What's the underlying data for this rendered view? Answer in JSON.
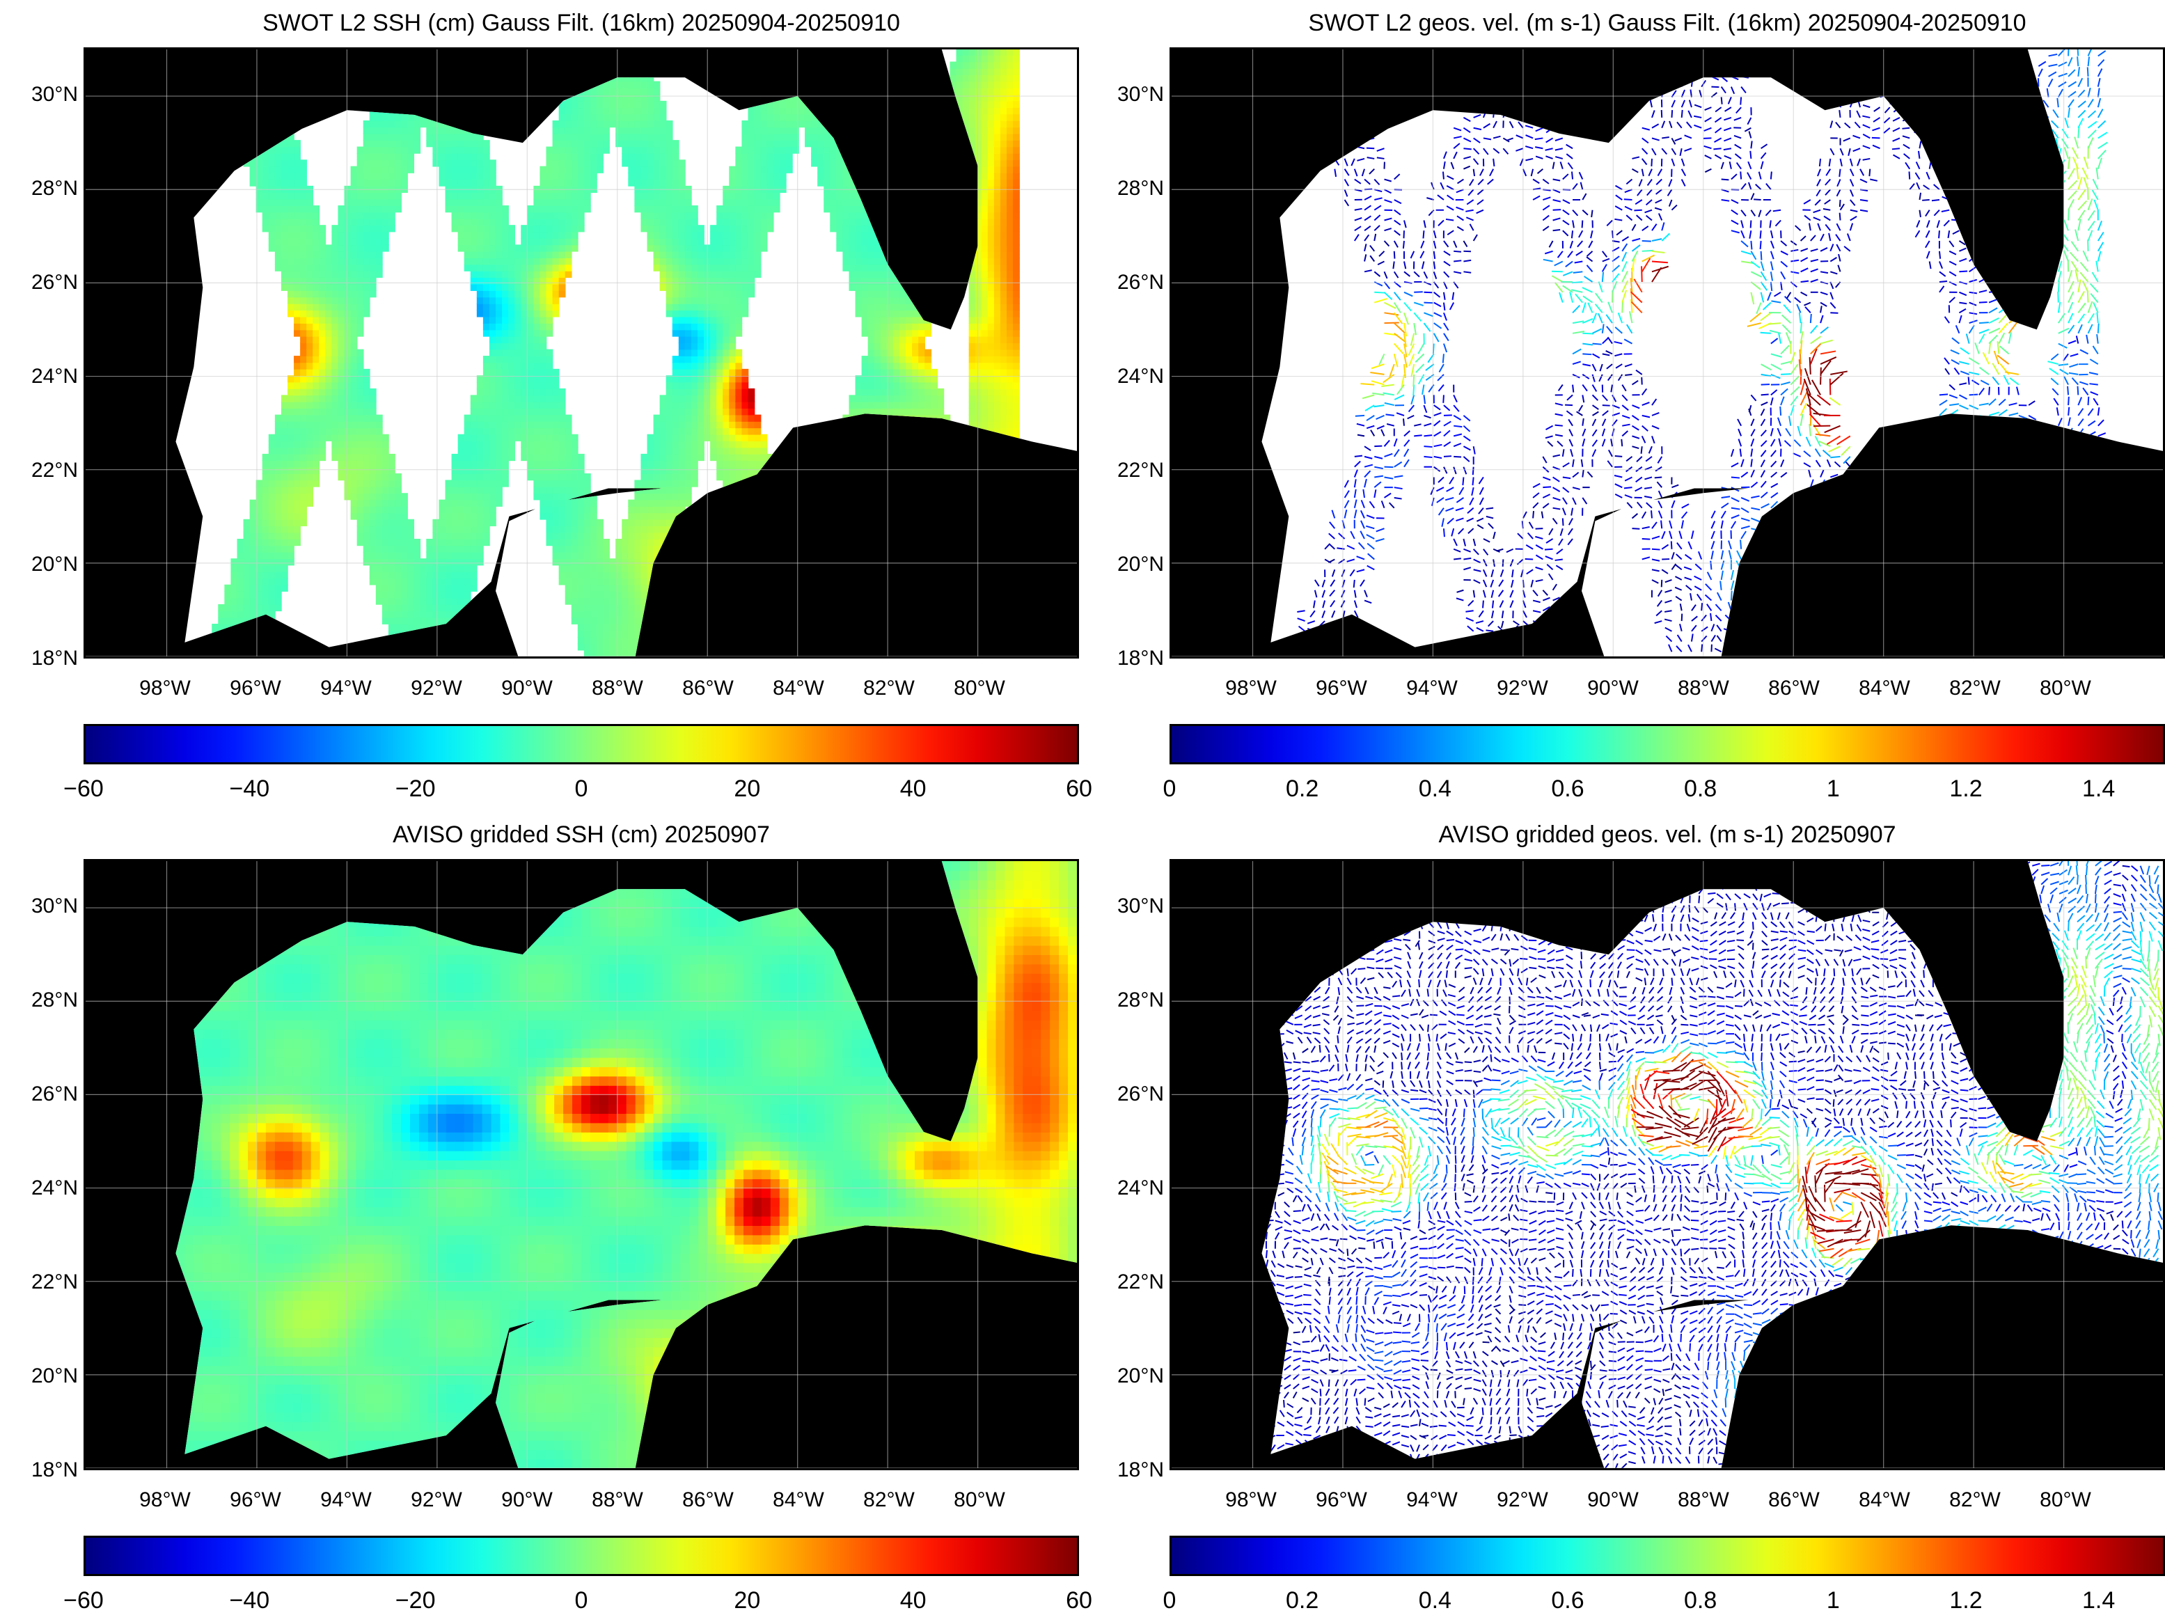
{
  "panels": [
    {
      "title": "SWOT L2 SSH (cm) Gauss Filt. (16km) 20250904-20250910",
      "kind": "ssh-swath",
      "colorbar": {
        "ticks": [
          "−60",
          "−40",
          "−20",
          "0",
          "20",
          "40",
          "60"
        ],
        "min": -60,
        "max": 60
      }
    },
    {
      "title": "SWOT L2 geos. vel. (m s-1) Gauss Filt. (16km) 20250904-20250910",
      "kind": "vel-swath",
      "colorbar": {
        "ticks": [
          "0",
          "0.2",
          "0.4",
          "0.6",
          "0.8",
          "1",
          "1.2",
          "1.4"
        ],
        "min": 0,
        "max": 1.5
      }
    },
    {
      "title": "AVISO gridded SSH (cm) 20250907",
      "kind": "ssh-grid",
      "colorbar": {
        "ticks": [
          "−60",
          "−40",
          "−20",
          "0",
          "20",
          "40",
          "60"
        ],
        "min": -60,
        "max": 60
      }
    },
    {
      "title": "AVISO gridded geos. vel. (m s-1)  20250907",
      "kind": "vel-grid",
      "colorbar": {
        "ticks": [
          "0",
          "0.2",
          "0.4",
          "0.6",
          "0.8",
          "1",
          "1.2",
          "1.4"
        ],
        "min": 0,
        "max": 1.5
      }
    }
  ],
  "axes": {
    "lat_labels": [
      "30°N",
      "28°N",
      "26°N",
      "24°N",
      "22°N",
      "20°N",
      "18°N"
    ],
    "lat_values": [
      30,
      28,
      26,
      24,
      22,
      20,
      18
    ],
    "lon_labels": [
      "98°W",
      "96°W",
      "94°W",
      "92°W",
      "90°W",
      "88°W",
      "86°W",
      "84°W",
      "82°W",
      "80°W"
    ],
    "lon_values": [
      -98,
      -96,
      -94,
      -92,
      -90,
      -88,
      -86,
      -84,
      -82,
      -80
    ],
    "lon_range": [
      -99.8,
      -77.8
    ],
    "lat_range": [
      18,
      31
    ]
  },
  "colormap": "jet",
  "colors": {
    "land": "#000000",
    "ocean_missing": "#ffffff",
    "grid": "#cccccc"
  }
}
